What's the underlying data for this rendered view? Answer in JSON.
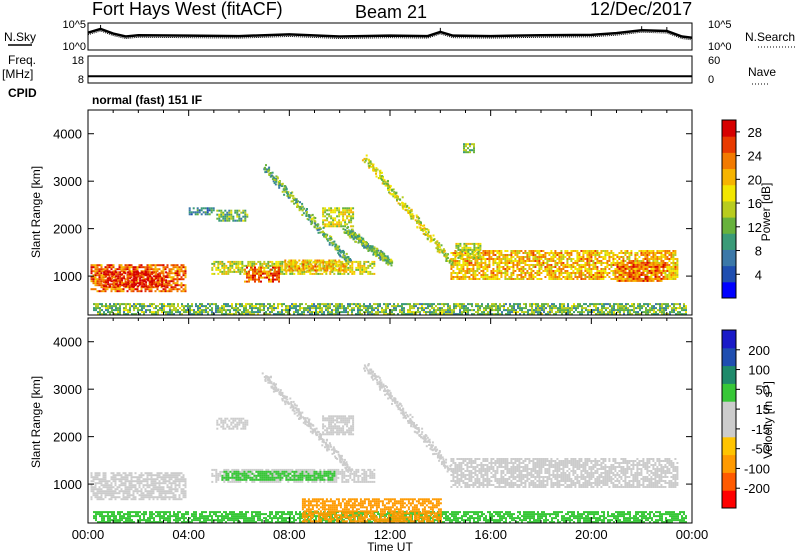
{
  "header": {
    "station": "Fort Hays West (fitACF)",
    "beam": "Beam 21",
    "date": "12/Dec/2017"
  },
  "side_labels": {
    "n_sky": "N.Sky",
    "freq": "Freq.",
    "freq_unit": "[MHz]",
    "cpid": "CPID",
    "n_search": "N.Search",
    "nave": "Nave",
    "mode": "normal (fast) 151 IF"
  },
  "chart_data": [
    {
      "type": "line",
      "name": "noise",
      "left_label": "N.Sky",
      "right_label": "N.Search",
      "ytick_labels_left": [
        "10^5",
        "10^0"
      ],
      "ytick_labels_right": [
        "10^5",
        "10^0"
      ],
      "ylim_log10": [
        0,
        5
      ],
      "x_hours": [
        0,
        0.5,
        1.0,
        1.5,
        2,
        4,
        6,
        8,
        10,
        12,
        13.5,
        14,
        14.5,
        16,
        18,
        20,
        21,
        22,
        23,
        23.6,
        24
      ],
      "y_log10": [
        3.4,
        4.3,
        3.2,
        2.5,
        2.8,
        2.7,
        2.6,
        3.0,
        2.5,
        2.7,
        2.6,
        3.6,
        2.7,
        2.6,
        2.8,
        2.9,
        3.3,
        4.0,
        3.8,
        2.5,
        2.2
      ]
    },
    {
      "type": "line",
      "name": "frequency",
      "left_label": "Freq. [MHz]",
      "right_label": "Nave",
      "ytick_labels_left": [
        "18",
        "8"
      ],
      "ytick_labels_right": [
        "60",
        "0"
      ],
      "ylim": [
        8,
        18
      ],
      "x_hours": [
        0,
        24
      ],
      "y": [
        10.5,
        10.5
      ]
    },
    {
      "type": "heatmap",
      "name": "power",
      "ylabel": "Slant Range [km]",
      "yticks": [
        1000,
        2000,
        3000,
        4000
      ],
      "ytick_labels": [
        "1000",
        "2000",
        "3000",
        "4000"
      ],
      "ylim": [
        180,
        4500
      ],
      "xlim_hours": [
        0,
        24
      ],
      "colorbar": {
        "label": "Power [dB]",
        "tick_labels": [
          "28",
          "24",
          "20",
          "16",
          "12",
          "8",
          "4"
        ],
        "ticks": [
          28,
          24,
          20,
          16,
          12,
          8,
          4
        ],
        "range": [
          0,
          30
        ],
        "colors": [
          "#0000ff",
          "#1f4eb0",
          "#3b78a8",
          "#3a9b78",
          "#67b23c",
          "#b8cc1e",
          "#f2e600",
          "#f6b400",
          "#f27a00",
          "#e83a00",
          "#d60000"
        ]
      },
      "regions": [
        {
          "t0": 0.1,
          "t1": 3.9,
          "r0": 700,
          "r1": 1250,
          "v": 24
        },
        {
          "t0": 0.6,
          "t1": 3.1,
          "r0": 800,
          "r1": 1100,
          "v": 28
        },
        {
          "t0": 4.9,
          "t1": 11.4,
          "r0": 1050,
          "r1": 1320,
          "v": 16
        },
        {
          "t0": 6.2,
          "t1": 7.6,
          "r0": 900,
          "r1": 1200,
          "v": 24
        },
        {
          "t0": 7.8,
          "t1": 10.2,
          "r0": 1100,
          "r1": 1350,
          "v": 20
        },
        {
          "t0": 5.1,
          "t1": 6.3,
          "r0": 2150,
          "r1": 2400,
          "v": 12
        },
        {
          "t0": 9.3,
          "t1": 10.5,
          "r0": 2050,
          "r1": 2450,
          "v": 16
        },
        {
          "t0": 4.0,
          "t1": 5.0,
          "r0": 2300,
          "r1": 2450,
          "v": 8
        },
        {
          "t0": 14.4,
          "t1": 23.4,
          "r0": 950,
          "r1": 1550,
          "v": 20
        },
        {
          "t0": 14.6,
          "t1": 15.6,
          "r0": 1400,
          "r1": 1700,
          "v": 16
        },
        {
          "t0": 21.0,
          "t1": 22.9,
          "r0": 900,
          "r1": 1300,
          "v": 24
        },
        {
          "t0": 14.9,
          "t1": 15.3,
          "r0": 3600,
          "r1": 3800,
          "v": 12
        },
        {
          "t0": 0.2,
          "t1": 23.8,
          "r0": 200,
          "r1": 430,
          "v": 12
        }
      ],
      "streaks": [
        {
          "t0": 11.0,
          "r0": 3500,
          "t1": 14.4,
          "r1": 1300,
          "v": 16
        },
        {
          "t0": 7.0,
          "r0": 3300,
          "t1": 10.4,
          "r0b": 1300,
          "r1": 1300,
          "v": 12
        },
        {
          "t0": 10.2,
          "r0": 2000,
          "t1": 12.0,
          "r1": 1300,
          "v": 12
        }
      ]
    },
    {
      "type": "heatmap",
      "name": "velocity",
      "ylabel": "Slant Range [km]",
      "yticks": [
        1000,
        2000,
        3000,
        4000
      ],
      "ytick_labels": [
        "1000",
        "2000",
        "3000",
        "4000"
      ],
      "ylim": [
        180,
        4500
      ],
      "xlim_hours": [
        0,
        24
      ],
      "xtick_labels": [
        "00:00",
        "04:00",
        "08:00",
        "12:00",
        "16:00",
        "20:00",
        "00:00"
      ],
      "xticks_hours": [
        0,
        4,
        8,
        12,
        16,
        20,
        24
      ],
      "xlabel": "Time UT",
      "colorbar": {
        "label": "Velocity [m s-1]",
        "tick_labels": [
          "200",
          "100",
          "50",
          "15",
          "-15",
          "-50",
          "-100",
          "-200"
        ],
        "colors": [
          "#ff0000",
          "#ff5a00",
          "#ff9a00",
          "#ffc400",
          "#cccccc",
          "#cccccc",
          "#37c737",
          "#1e8a6a",
          "#1f4eb0",
          "#1a1ac8"
        ]
      },
      "regions": [
        {
          "t0": 0.1,
          "t1": 3.9,
          "r0": 700,
          "r1": 1250,
          "v": 0
        },
        {
          "t0": 4.9,
          "t1": 11.4,
          "r0": 1050,
          "r1": 1320,
          "v": 0
        },
        {
          "t0": 5.3,
          "t1": 9.8,
          "r0": 1100,
          "r1": 1280,
          "v": 60
        },
        {
          "t0": 5.1,
          "t1": 6.3,
          "r0": 2150,
          "r1": 2400,
          "v": 0
        },
        {
          "t0": 9.3,
          "t1": 10.5,
          "r0": 2050,
          "r1": 2450,
          "v": 0
        },
        {
          "t0": 14.4,
          "t1": 23.4,
          "r0": 950,
          "r1": 1550,
          "v": 0
        },
        {
          "t0": 0.2,
          "t1": 23.8,
          "r0": 200,
          "r1": 430,
          "v": 40
        },
        {
          "t0": 8.5,
          "t1": 14.0,
          "r0": 200,
          "r1": 700,
          "v": -40
        }
      ],
      "streaks": [
        {
          "t0": 11.0,
          "r0": 3500,
          "t1": 14.4,
          "r1": 1300,
          "v": 0
        },
        {
          "t0": 7.0,
          "r0": 3300,
          "t1": 10.4,
          "r1": 1300,
          "v": 0
        }
      ]
    }
  ]
}
